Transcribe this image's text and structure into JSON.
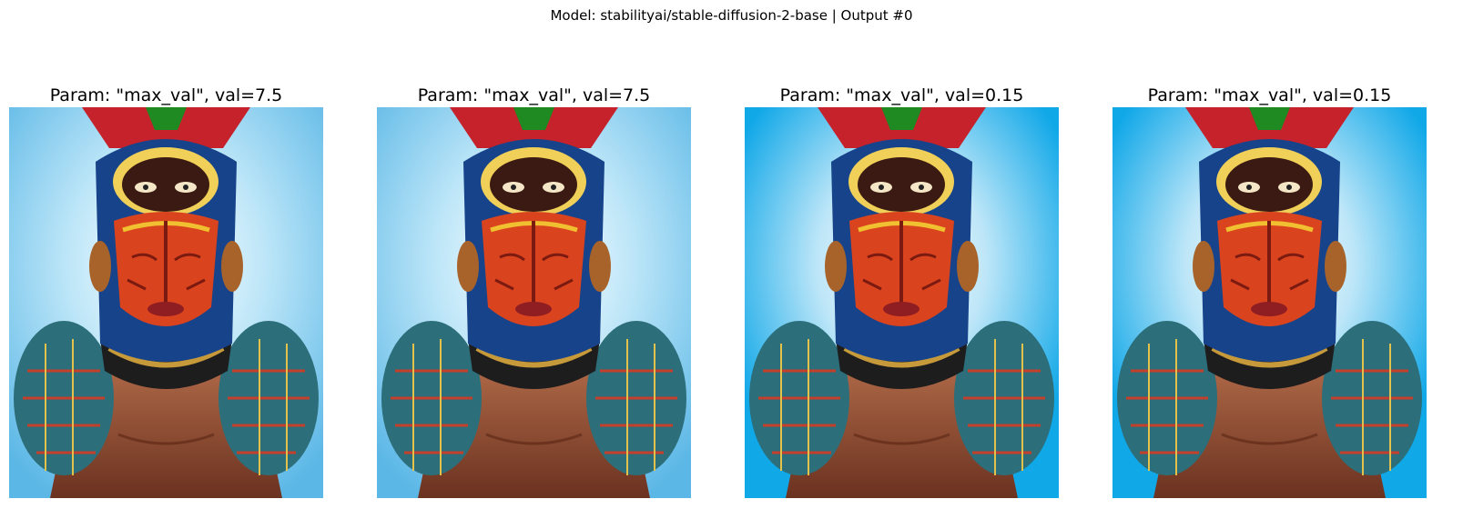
{
  "figure": {
    "suptitle": "Model: stabilityai/stable-diffusion-2-base | Output #0"
  },
  "panels": [
    {
      "title": "Param: \"max_val\", val=7.5",
      "style": "soft",
      "background": "#5bb7e6"
    },
    {
      "title": "Param: \"max_val\", val=7.5",
      "style": "soft",
      "background": "#5bb7e6"
    },
    {
      "title": "Param: \"max_val\", val=0.15",
      "style": "contrast",
      "background": "#11a8e8"
    },
    {
      "title": "Param: \"max_val\", val=0.15",
      "style": "contrast",
      "background": "#11a8e8"
    }
  ]
}
